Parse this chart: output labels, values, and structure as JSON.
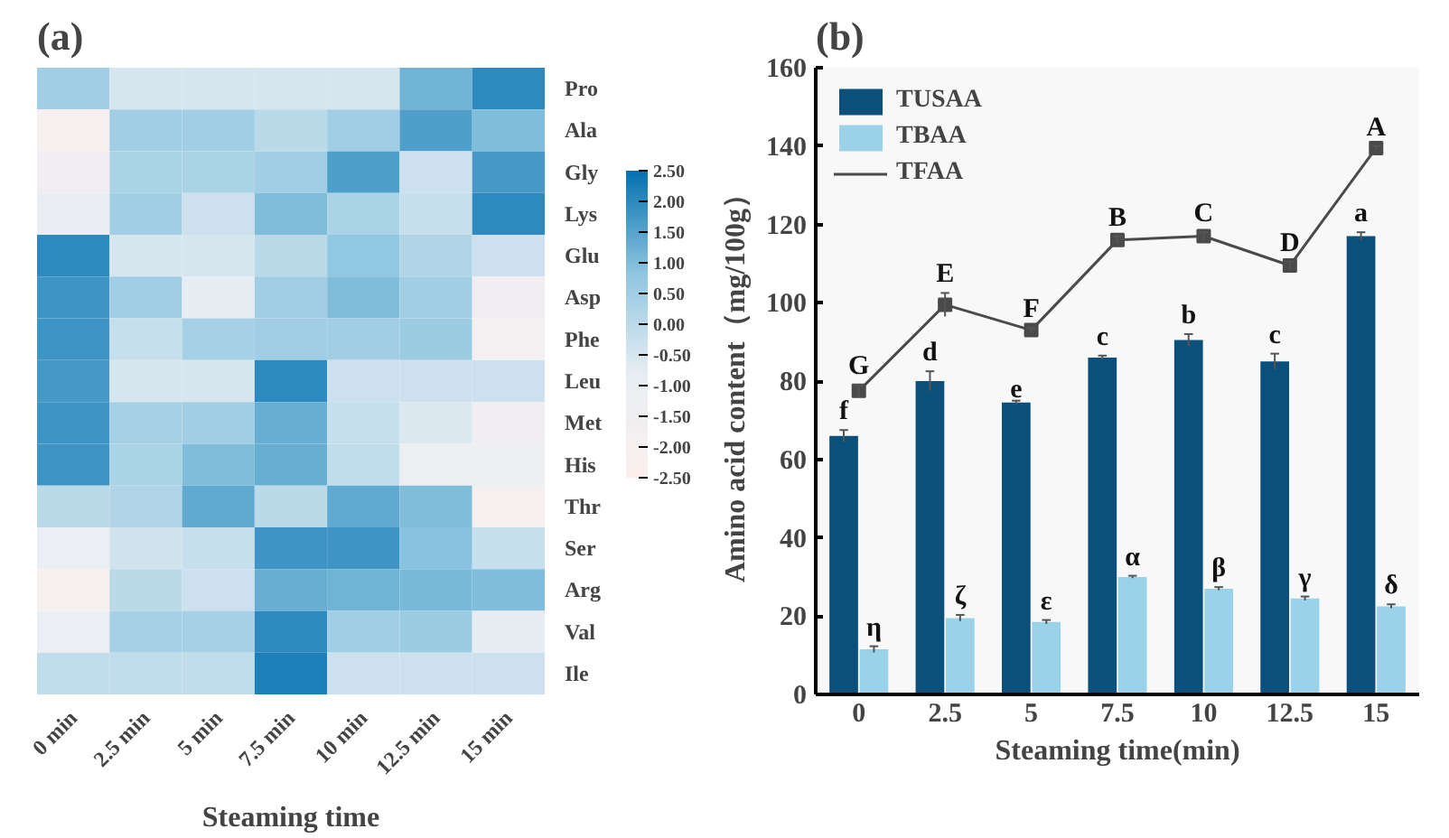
{
  "chart_data": [
    {
      "type": "heatmap",
      "title": "(a)",
      "xlabel": "Steaming time",
      "categories": [
        "0 min",
        "2.5 min",
        "5 min",
        "7.5 min",
        "10 min",
        "12.5 min",
        "15 min"
      ],
      "y_categories": [
        "Pro",
        "Ala",
        "Gly",
        "Lys",
        "Glu",
        "Asp",
        "Phe",
        "Leu",
        "Met",
        "His",
        "Thr",
        "Ser",
        "Arg",
        "Val",
        "Ile"
      ],
      "cells": [
        [
          0.5,
          -0.5,
          -0.5,
          -0.5,
          -0.5,
          1.2,
          2.0
        ],
        [
          -2.0,
          0.5,
          0.5,
          0.0,
          0.5,
          1.6,
          1.0
        ],
        [
          -1.5,
          0.3,
          0.3,
          0.5,
          1.6,
          -0.3,
          1.7
        ],
        [
          -1.0,
          0.5,
          -0.3,
          1.0,
          0.3,
          -0.2,
          2.0
        ],
        [
          2.0,
          -0.5,
          -0.5,
          0.0,
          0.8,
          0.2,
          -0.3
        ],
        [
          1.8,
          0.5,
          -0.8,
          0.5,
          1.0,
          0.5,
          -1.5
        ],
        [
          1.8,
          -0.2,
          0.4,
          0.5,
          0.5,
          0.6,
          -1.8
        ],
        [
          1.7,
          -0.5,
          -0.5,
          2.0,
          -0.3,
          -0.3,
          -0.3
        ],
        [
          1.8,
          0.4,
          0.5,
          1.3,
          -0.2,
          -0.6,
          -1.5
        ],
        [
          1.8,
          0.3,
          1.0,
          1.3,
          -0.1,
          -1.2,
          -1.2
        ],
        [
          0.0,
          0.2,
          1.4,
          0.0,
          1.4,
          1.0,
          -2.0
        ],
        [
          -1.1,
          -0.4,
          -0.2,
          1.8,
          1.8,
          0.9,
          -0.2
        ],
        [
          -2.0,
          0.0,
          -0.3,
          1.3,
          1.2,
          1.1,
          1.0
        ],
        [
          -1.1,
          0.4,
          0.4,
          2.0,
          0.5,
          0.6,
          -0.8
        ],
        [
          -0.1,
          -0.1,
          -0.1,
          2.2,
          -0.3,
          -0.3,
          -0.3
        ]
      ],
      "clim": [
        -2.5,
        2.5
      ],
      "cticks": [
        {
          "value": 2.5,
          "label": "2.50"
        },
        {
          "value": 2.0,
          "label": "2.00"
        },
        {
          "value": 1.5,
          "label": "1.50"
        },
        {
          "value": 1.0,
          "label": "1.00"
        },
        {
          "value": 0.5,
          "label": "0.50"
        },
        {
          "value": 0.0,
          "label": "0.00"
        },
        {
          "value": -0.5,
          "label": "-0.50"
        },
        {
          "value": -1.0,
          "label": "-1.00"
        },
        {
          "value": -1.5,
          "label": "-1.50"
        },
        {
          "value": -2.0,
          "label": "-2.00"
        },
        {
          "value": -2.5,
          "label": "-2.50"
        }
      ]
    },
    {
      "type": "bar",
      "title": "(b)",
      "xlabel": "Steaming time(min)",
      "ylabel": "Amino acid content（mg/100g）",
      "categories": [
        "0",
        "2.5",
        "5",
        "7.5",
        "10",
        "12.5",
        "15"
      ],
      "series": [
        {
          "name": "TUSAA",
          "color": "#0b4f7b",
          "values": [
            66,
            80,
            74.5,
            86,
            90.5,
            85,
            117
          ],
          "errors": [
            1.5,
            2.5,
            0.5,
            0.5,
            1.5,
            2,
            1
          ]
        },
        {
          "name": "TBAA",
          "color": "#9ad3e9",
          "values": [
            11.5,
            19.5,
            18.5,
            30,
            27,
            24.5,
            22.5
          ],
          "errors": [
            0.8,
            0.8,
            0.5,
            0.3,
            0.4,
            0.5,
            0.5
          ]
        },
        {
          "name": "TFAA",
          "type": "line",
          "color": "#4a4a4a",
          "marker": "square",
          "values": [
            77.5,
            99.5,
            93,
            116,
            117,
            109.5,
            139.5
          ],
          "errors": [
            1.5,
            3,
            0.5,
            1,
            1,
            1,
            0.5
          ]
        }
      ],
      "ylim": [
        0,
        160
      ],
      "yticks": [
        0,
        20,
        40,
        60,
        80,
        100,
        120,
        140,
        160
      ],
      "legend": "top left",
      "grid": false,
      "annotations": [
        {
          "text": "f",
          "x": "0",
          "y": 66
        },
        {
          "text": "d",
          "x": "2.5",
          "y": 80
        },
        {
          "text": "e",
          "x": "5",
          "y": 74.5
        },
        {
          "text": "c",
          "x": "7.5",
          "y": 86
        },
        {
          "text": "b",
          "x": "10",
          "y": 90.5
        },
        {
          "text": "c",
          "x": "12.5",
          "y": 85
        },
        {
          "text": "a",
          "x": "15",
          "y": 117
        },
        {
          "text": "η",
          "x": "0",
          "y": 11.5
        },
        {
          "text": "ζ",
          "x": "2.5",
          "y": 19.5
        },
        {
          "text": "ε",
          "x": "5",
          "y": 18.5
        },
        {
          "text": "α",
          "x": "7.5",
          "y": 30
        },
        {
          "text": "β",
          "x": "10",
          "y": 27
        },
        {
          "text": "γ",
          "x": "12.5",
          "y": 24.5
        },
        {
          "text": "δ",
          "x": "15",
          "y": 22.5
        },
        {
          "text": "G",
          "x": "0",
          "y": 77.5
        },
        {
          "text": "E",
          "x": "2.5",
          "y": 99.5
        },
        {
          "text": "F",
          "x": "5",
          "y": 93
        },
        {
          "text": "B",
          "x": "7.5",
          "y": 116
        },
        {
          "text": "C",
          "x": "10",
          "y": 117
        },
        {
          "text": "D",
          "x": "12.5",
          "y": 109.5
        },
        {
          "text": "A",
          "x": "15",
          "y": 139.5
        }
      ]
    }
  ]
}
